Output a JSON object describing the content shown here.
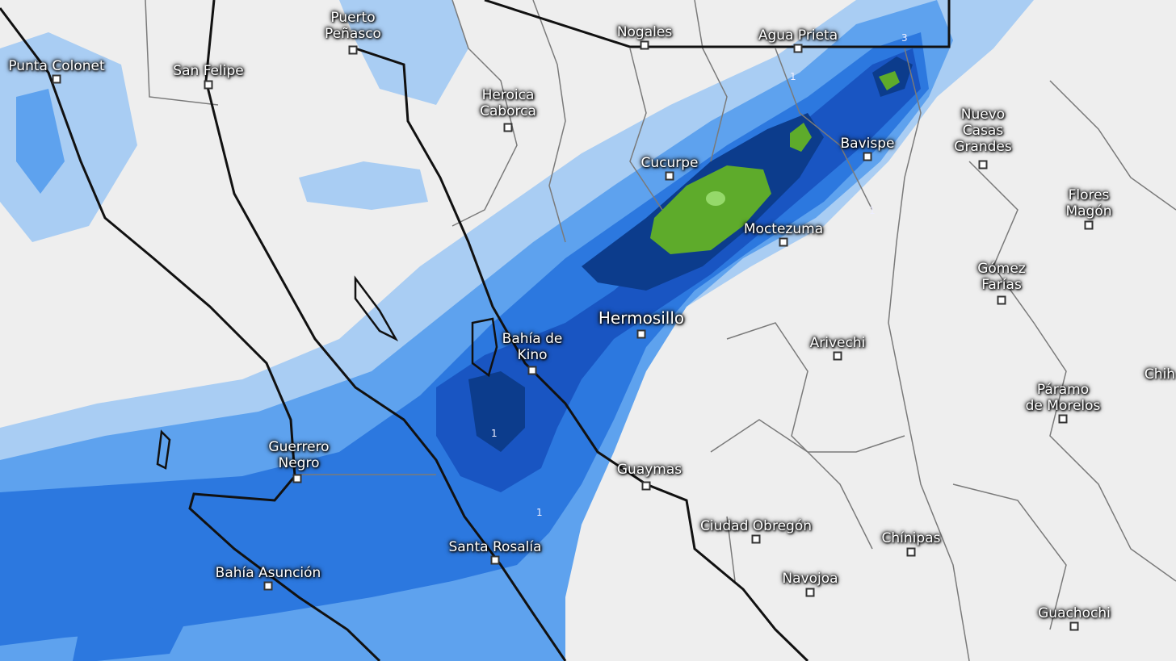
{
  "map": {
    "colors": {
      "land": "#eeeeee",
      "precip_light": "#a9cdf3",
      "precip_mid": "#5ea2ee",
      "precip_strong": "#2c78df",
      "precip_heavy": "#1955c2",
      "precip_very_heavy": "#0c3c8c",
      "precip_extreme": "#5eab2b",
      "precip_peak": "#95d96a",
      "coastline": "#111111",
      "borders": "#777777"
    },
    "places": [
      {
        "name": "Punta Colonet",
        "lines": [
          "Punta Colonet"
        ]
      },
      {
        "name": "San Felipe",
        "lines": [
          "San Felipe"
        ]
      },
      {
        "name": "Puerto Peñasco",
        "lines": [
          "Puerto",
          "Peñasco"
        ]
      },
      {
        "name": "Nogales",
        "lines": [
          "Nogales"
        ]
      },
      {
        "name": "Agua Prieta",
        "lines": [
          "Agua Prieta"
        ]
      },
      {
        "name": "Heroica Caborca",
        "lines": [
          "Heroica",
          "Caborca"
        ]
      },
      {
        "name": "Cucurpe",
        "lines": [
          "Cucurpe"
        ]
      },
      {
        "name": "Bavispe",
        "lines": [
          "Bavispe"
        ]
      },
      {
        "name": "Nuevo Casas Grandes",
        "lines": [
          "Nuevo",
          "Casas",
          "Grandes"
        ]
      },
      {
        "name": "Flores Magón",
        "lines": [
          "Flores",
          "Magón"
        ]
      },
      {
        "name": "Moctezuma",
        "lines": [
          "Moctezuma"
        ]
      },
      {
        "name": "Gómez Farías",
        "lines": [
          "Gómez",
          "Farías"
        ]
      },
      {
        "name": "Hermosillo",
        "lines": [
          "Hermosillo"
        ]
      },
      {
        "name": "Bahía de Kino",
        "lines": [
          "Bahía de",
          "Kino"
        ]
      },
      {
        "name": "Arivechi",
        "lines": [
          "Arivechi"
        ]
      },
      {
        "name": "Chih",
        "lines": [
          "Chih"
        ]
      },
      {
        "name": "Páramo de Morelos",
        "lines": [
          "Páramo",
          "de Morelos"
        ]
      },
      {
        "name": "Guerrero Negro",
        "lines": [
          "Guerrero",
          "Negro"
        ]
      },
      {
        "name": "Guaymas",
        "lines": [
          "Guaymas"
        ]
      },
      {
        "name": "Ciudad Obregón",
        "lines": [
          "Ciudad Obregón"
        ]
      },
      {
        "name": "Chínipas",
        "lines": [
          "Chínipas"
        ]
      },
      {
        "name": "Santa Rosalía",
        "lines": [
          "Santa Rosalía"
        ]
      },
      {
        "name": "Navojoa",
        "lines": [
          "Navojoa"
        ]
      },
      {
        "name": "Bahía Asunción",
        "lines": [
          "Bahía Asunción"
        ]
      },
      {
        "name": "Guachochi",
        "lines": [
          "Guachochi"
        ]
      }
    ],
    "contour_labels": [
      "1",
      "1",
      "1",
      "1",
      "3"
    ]
  }
}
